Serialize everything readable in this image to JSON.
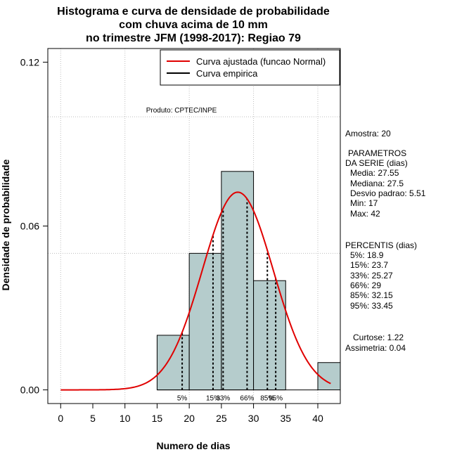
{
  "chart_data": {
    "type": "histogram",
    "title_lines": [
      "Histograma e curva de densidade de probabilidade",
      "com chuva acima de 10 mm",
      "no trimestre JFM (1998-2017): Regiao 79"
    ],
    "xlabel": "Numero de dias",
    "ylabel": "Densidade de probabilidade",
    "xlim": [
      -2,
      43.5
    ],
    "ylim": [
      -0.005,
      0.125
    ],
    "x_ticks": [
      0,
      5,
      10,
      15,
      20,
      25,
      30,
      35,
      40
    ],
    "x_tick_labels": [
      "0",
      "5",
      "10",
      "15",
      "20",
      "25",
      "30",
      "35",
      "40"
    ],
    "y_ticks": [
      0.0,
      0.06,
      0.12
    ],
    "y_tick_labels": [
      "0.00",
      "0.06",
      "0.12"
    ],
    "grid": true,
    "grid_x": [
      0,
      10,
      20,
      30,
      40
    ],
    "grid_y": [
      0.05,
      0.1
    ],
    "bins": [
      {
        "x0": 15,
        "x1": 20,
        "density": 0.02
      },
      {
        "x0": 20,
        "x1": 25,
        "density": 0.05
      },
      {
        "x0": 25,
        "x1": 30,
        "density": 0.08
      },
      {
        "x0": 30,
        "x1": 35,
        "density": 0.04
      },
      {
        "x0": 35,
        "x1": 40,
        "density": 0.0
      },
      {
        "x0": 40,
        "x1": 45,
        "density": 0.01
      }
    ],
    "normal_fit": {
      "mean": 27.55,
      "sd": 5.51,
      "x_start": 0,
      "x_end": 42
    },
    "percentiles": [
      {
        "label": "5%",
        "value": 18.9
      },
      {
        "label": "15%",
        "value": 23.7
      },
      {
        "label": "33%",
        "value": 25.27
      },
      {
        "label": "66%",
        "value": 29
      },
      {
        "label": "85%",
        "value": 32.15
      },
      {
        "label": "95%",
        "value": 33.45
      }
    ],
    "legend": {
      "position": "top-right",
      "entries": [
        {
          "label": "Curva ajustada (funcao Normal)",
          "color": "#e00000"
        },
        {
          "label": "Curva empirica",
          "color": "#000000"
        }
      ]
    },
    "product_label": "Produto: CPTEC/INPE",
    "colors": {
      "bar_fill": "#b5cccc",
      "curve": "#e00000",
      "grid": "#bdbdbd"
    }
  },
  "side_stats": {
    "sample": "Amostra: 20",
    "params_header": "PARAMETROS",
    "params_sub": "DA SERIE (dias)",
    "media": "Media: 27.55",
    "mediana": "Mediana: 27.5",
    "desvio": "Desvio padrao: 5.51",
    "min": "Min: 17",
    "max": "Max: 42",
    "percentis_header": "PERCENTIS (dias)",
    "p5": "5%: 18.9",
    "p15": "15%: 23.7",
    "p33": "33%: 25.27",
    "p66": "66%: 29",
    "p85": "85%: 32.15",
    "p95": "95%: 33.45",
    "curtose": "Curtose: 1.22",
    "assimetria": "Assimetria: 0.04"
  }
}
